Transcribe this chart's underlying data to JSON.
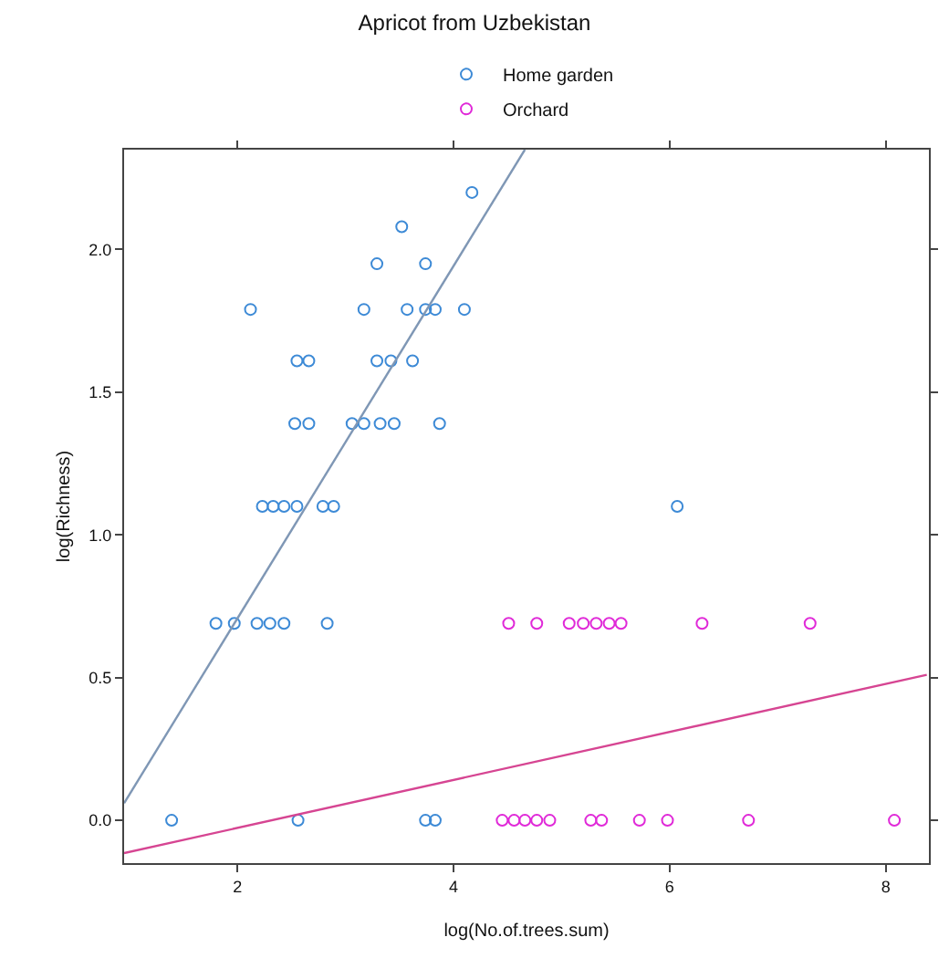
{
  "chart_data": {
    "type": "scatter",
    "title": "Apricot from Uzbekistan",
    "xlabel": "log(No.of.trees.sum)",
    "ylabel": "log(Richness)",
    "xlim": [
      0.95,
      8.4
    ],
    "ylim": [
      -0.15,
      2.35
    ],
    "xticks": [
      2,
      4,
      6,
      8
    ],
    "yticks": [
      {
        "value": 0,
        "label": "0.0"
      },
      0.5,
      {
        "value": 1,
        "label": "1.0"
      },
      1.5,
      {
        "value": 2,
        "label": "2.0"
      }
    ],
    "grid": false,
    "legend": "top",
    "series": [
      {
        "name": "Home garden",
        "color": "#3d8ad6",
        "marker": "circle",
        "x": [
          4.17,
          3.52,
          3.29,
          3.74,
          2.12,
          3.17,
          3.57,
          3.74,
          3.83,
          4.1,
          2.55,
          2.66,
          3.29,
          3.42,
          3.62,
          2.53,
          2.66,
          3.06,
          3.17,
          3.32,
          3.45,
          3.87,
          2.23,
          2.33,
          2.43,
          2.55,
          2.79,
          2.89,
          6.07,
          1.8,
          1.97,
          2.18,
          2.3,
          2.43,
          2.83,
          1.39,
          2.56,
          3.74,
          3.83
        ],
        "values": [
          2.2,
          2.08,
          1.95,
          1.95,
          1.79,
          1.79,
          1.79,
          1.79,
          1.79,
          1.79,
          1.61,
          1.61,
          1.61,
          1.61,
          1.61,
          1.39,
          1.39,
          1.39,
          1.39,
          1.39,
          1.39,
          1.39,
          1.1,
          1.1,
          1.1,
          1.1,
          1.1,
          1.1,
          1.1,
          0.69,
          0.69,
          0.69,
          0.69,
          0.69,
          0.69,
          0,
          0,
          0,
          0
        ]
      },
      {
        "name": "Orchard",
        "color": "#e02ad8",
        "marker": "circle",
        "x": [
          4.51,
          4.77,
          5.07,
          5.2,
          5.32,
          5.44,
          5.55,
          6.3,
          7.3,
          4.45,
          4.56,
          4.66,
          4.77,
          4.89,
          5.27,
          5.37,
          5.72,
          5.98,
          6.73,
          8.08
        ],
        "values": [
          0.69,
          0.69,
          0.69,
          0.69,
          0.69,
          0.69,
          0.69,
          0.69,
          0.69,
          0,
          0,
          0,
          0,
          0,
          0,
          0,
          0,
          0,
          0,
          0
        ]
      },
      {
        "type": "line",
        "marker": "none",
        "color": "#7f97b5",
        "x": [
          0.95,
          4.66
        ],
        "values": [
          0.06,
          2.35
        ]
      },
      {
        "type": "line",
        "marker": "none",
        "color": "#d64592",
        "x": [
          0.95,
          8.38
        ],
        "values": [
          -0.115,
          0.51
        ]
      }
    ]
  }
}
